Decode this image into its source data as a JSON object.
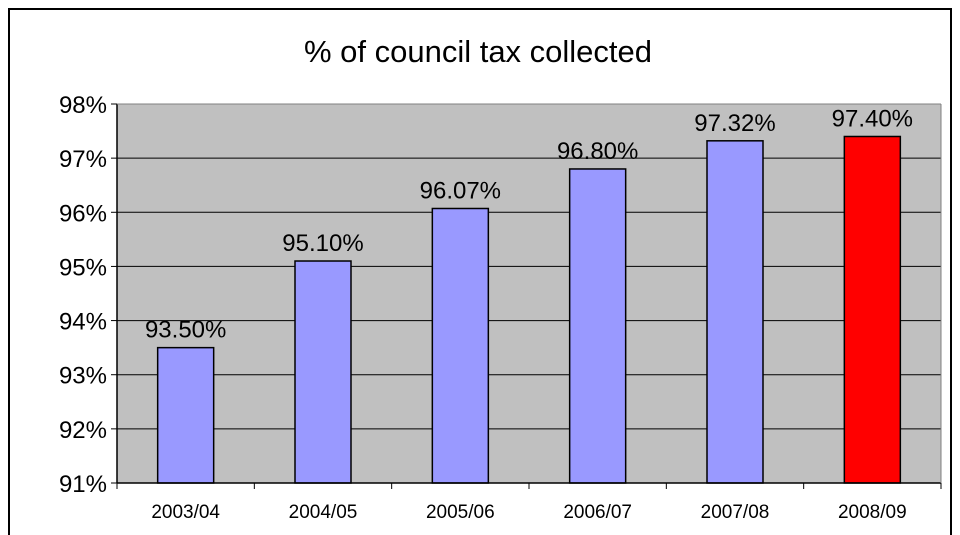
{
  "chart_data": {
    "type": "bar",
    "title": "% of council tax collected",
    "xlabel": "",
    "ylabel": "",
    "categories": [
      "2003/04",
      "2004/05",
      "2005/06",
      "2006/07",
      "2007/08",
      "2008/09"
    ],
    "values": [
      93.5,
      95.1,
      96.07,
      96.8,
      97.32,
      97.4
    ],
    "data_labels": [
      "93.50%",
      "95.10%",
      "96.07%",
      "96.80%",
      "97.32%",
      "97.40%"
    ],
    "ylim": [
      91,
      98
    ],
    "yticks": [
      91,
      92,
      93,
      94,
      95,
      96,
      97,
      98
    ],
    "ytick_labels": [
      "91%",
      "92%",
      "93%",
      "94%",
      "95%",
      "96%",
      "97%",
      "98%"
    ],
    "grid": true,
    "legend": "none",
    "colors": {
      "bar": "#9999ff",
      "highlight_bar": "#ff0000",
      "plot_background": "#c0c0c0",
      "gridline": "#000000",
      "bar_outline": "#000000"
    },
    "highlight_category": "2008/09"
  }
}
